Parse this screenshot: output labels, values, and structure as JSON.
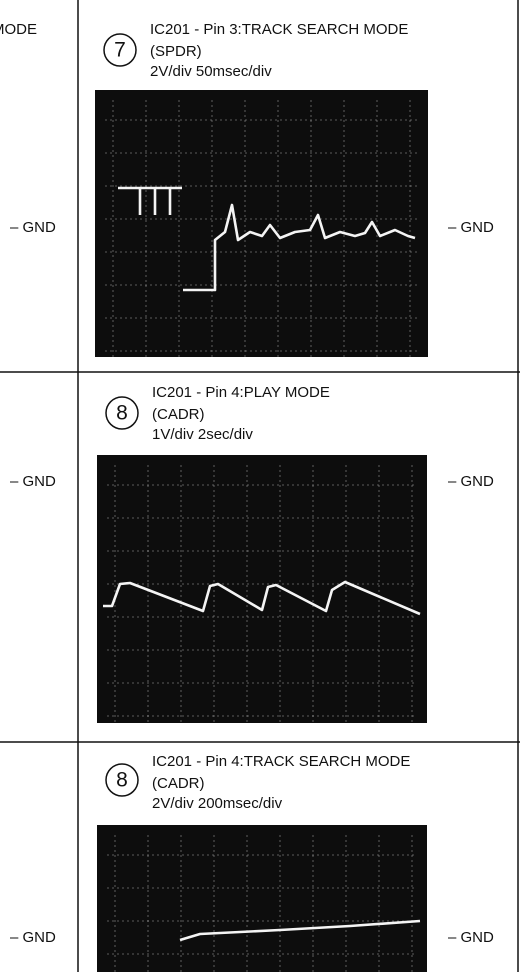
{
  "left_column": {
    "mode_text": "MODE",
    "gnd_labels": [
      "– GND",
      "– GND",
      "– GND"
    ]
  },
  "panels": [
    {
      "number": "7",
      "title": "IC201 - Pin 3:TRACK SEARCH MODE",
      "signal": "(SPDR)",
      "scale": "2V/div   50msec/div",
      "gnd_label": "– GND"
    },
    {
      "number": "8",
      "title": "IC201 - Pin 4:PLAY MODE",
      "signal": "(CADR)",
      "scale": "1V/div   2sec/div",
      "gnd_label": "– GND"
    },
    {
      "number": "8",
      "title": "IC201 - Pin 4:TRACK SEARCH MODE",
      "signal": "(CADR)",
      "scale": "2V/div 200msec/div",
      "gnd_label": "– GND"
    }
  ]
}
